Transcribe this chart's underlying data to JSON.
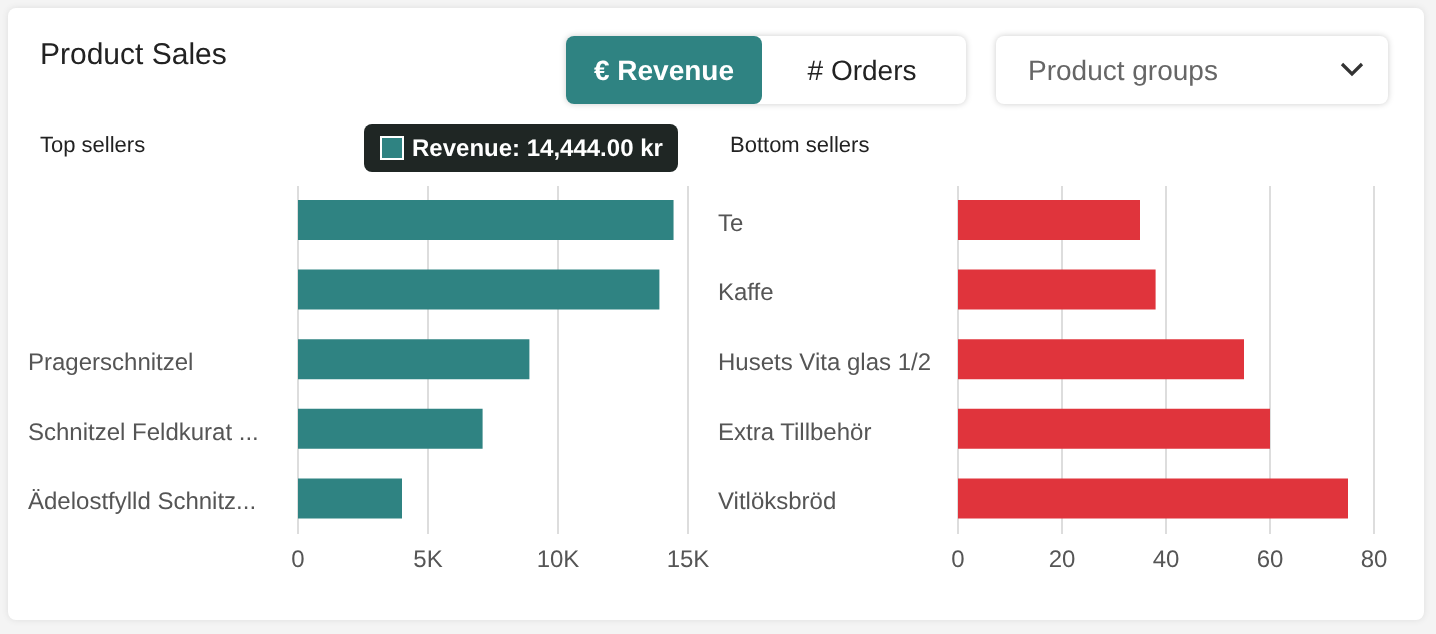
{
  "chart_data": [
    {
      "type": "other",
      "title": "Product Sales",
      "annotations": [
        "€ Revenue",
        "# Orders",
        "Product groups"
      ]
    },
    {
      "type": "bar",
      "orientation": "horizontal",
      "title": "Top sellers",
      "categories": [
        null,
        null,
        "Pragerschnitzel",
        "Schnitzel Feldkurat ...",
        "Ädelostfylld Schnitz..."
      ],
      "values": [
        14444,
        13900,
        8900,
        7100,
        4000
      ],
      "color": "#2f8382",
      "xlim": [
        0,
        15000
      ],
      "xticks": [
        0,
        {
          "value": 5000,
          "label": "5K"
        },
        {
          "value": 10000,
          "label": "10K"
        },
        {
          "value": 15000,
          "label": "15K"
        }
      ],
      "grid": "x",
      "legend": false,
      "annotations": [
        "Revenue: 14,444.00 kr"
      ]
    },
    {
      "type": "bar",
      "orientation": "horizontal",
      "title": "Bottom sellers",
      "categories": [
        "Te",
        "Kaffe",
        "Husets Vita glas 1/2",
        "Extra Tillbehör",
        "Vitlöksbröd"
      ],
      "values": [
        35,
        38,
        55,
        60,
        75
      ],
      "color": "#e0343c",
      "xlim": [
        0,
        80
      ],
      "xticks": [
        0,
        20,
        40,
        60,
        80
      ],
      "grid": "x",
      "legend": false
    }
  ]
}
